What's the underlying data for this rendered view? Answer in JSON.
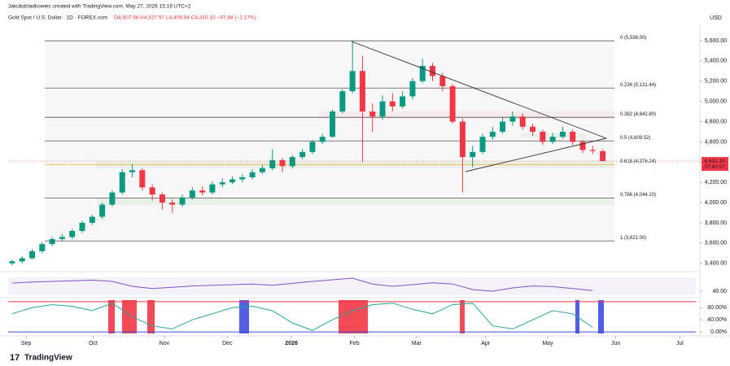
{
  "chart_data": {
    "type": "candlestick",
    "credit": "Jakubdzladkowiec created with TradingView.com, May 27, 2026 15:19 UTC+2",
    "title": "Gold Spot / U.S. Dollar · 1D · FOREX.com",
    "ohlc_text": "O4,507.98 H4,527.97 L4,409.94 C4,410.10 −97.88 (−2.17%)",
    "currency": "USD",
    "price_tag": "4,410.10",
    "countdown": "07:40:57",
    "brand": "TradingView",
    "up_color": "#089981",
    "down_color": "#f23645",
    "xlim": [
      -0.4,
      68.3
    ],
    "xticks": [
      {
        "value": 1.4,
        "label": "Sep"
      },
      {
        "value": 8.1,
        "label": "Oct"
      },
      {
        "value": 15.2,
        "label": "Nov"
      },
      {
        "value": 21.5,
        "label": "Dec"
      },
      {
        "value": 27.9,
        "label": "2026"
      },
      {
        "value": 34.2,
        "label": "Feb"
      },
      {
        "value": 40.4,
        "label": "Mar"
      },
      {
        "value": 47.3,
        "label": "Apr"
      },
      {
        "value": 53.5,
        "label": "May"
      },
      {
        "value": 60.3,
        "label": "Jun"
      },
      {
        "value": 66.7,
        "label": "Jul"
      }
    ],
    "ylim": [
      3350,
      5680
    ],
    "yticks": [
      {
        "value": 3400,
        "label": "3,400.00"
      },
      {
        "value": 3600,
        "label": "3,600.00"
      },
      {
        "value": 3800,
        "label": "3,800.00"
      },
      {
        "value": 4000,
        "label": "4,000.00"
      },
      {
        "value": 4200,
        "label": "4,200.00"
      },
      {
        "value": 4400,
        "label": "4,400.00"
      },
      {
        "value": 4600,
        "label": "4,600.00"
      },
      {
        "value": 4800,
        "label": "4,800.00"
      },
      {
        "value": 5000,
        "label": "5,000.00"
      },
      {
        "value": 5200,
        "label": "5,200.00"
      },
      {
        "value": 5400,
        "label": "5,400.00"
      },
      {
        "value": 5600,
        "label": "5,600.00"
      }
    ],
    "open": [
      3400,
      3420,
      3450,
      3520,
      3590,
      3640,
      3660,
      3720,
      3800,
      3860,
      3980,
      4100,
      4300,
      4320,
      4150,
      4080,
      4000,
      3980,
      4050,
      4120,
      4100,
      4180,
      4200,
      4230,
      4250,
      4300,
      4340,
      4420,
      4360,
      4450,
      4500,
      4600,
      4650,
      4900,
      5100,
      5300,
      4900,
      4850,
      5000,
      4950,
      5050,
      5200,
      5350,
      5250,
      5150,
      4800,
      4450,
      4500,
      4650,
      4700,
      4800,
      4850,
      4750,
      4700,
      4600,
      4650,
      4700,
      4600,
      4520,
      4507.98
    ],
    "high": [
      3440,
      3470,
      3540,
      3610,
      3660,
      3690,
      3740,
      3820,
      3880,
      4000,
      4120,
      4330,
      4380,
      4340,
      4180,
      4100,
      4030,
      4080,
      4150,
      4160,
      4210,
      4240,
      4260,
      4280,
      4330,
      4370,
      4530,
      4440,
      4470,
      4530,
      4620,
      4680,
      4920,
      5120,
      5598,
      5450,
      4980,
      5060,
      5080,
      5100,
      5230,
      5420,
      5380,
      5280,
      5170,
      4830,
      4560,
      4680,
      4750,
      4840,
      4900,
      4880,
      4780,
      4720,
      4690,
      4750,
      4720,
      4620,
      4560,
      4527.97
    ],
    "low": [
      3380,
      3400,
      3440,
      3500,
      3570,
      3620,
      3640,
      3700,
      3780,
      3840,
      3960,
      4080,
      4250,
      4120,
      4020,
      3930,
      3900,
      3960,
      4030,
      4070,
      4080,
      4150,
      4180,
      4200,
      4230,
      4280,
      4320,
      4300,
      4340,
      4430,
      4480,
      4580,
      4640,
      4880,
      5080,
      4400,
      4700,
      4820,
      4900,
      4930,
      5020,
      5180,
      5200,
      5100,
      4780,
      4100,
      4350,
      4480,
      4620,
      4680,
      4760,
      4720,
      4660,
      4570,
      4580,
      4630,
      4570,
      4490,
      4480,
      4409.94
    ],
    "close": [
      3420,
      3450,
      3520,
      3590,
      3640,
      3660,
      3720,
      3800,
      3860,
      3980,
      4100,
      4300,
      4320,
      4150,
      4080,
      4000,
      3980,
      4050,
      4120,
      4100,
      4180,
      4200,
      4230,
      4250,
      4300,
      4340,
      4420,
      4360,
      4450,
      4500,
      4600,
      4650,
      4900,
      5100,
      5300,
      4900,
      4850,
      5000,
      4950,
      5050,
      5200,
      5350,
      5250,
      5150,
      4800,
      4450,
      4500,
      4650,
      4700,
      4800,
      4850,
      4750,
      4700,
      4600,
      4650,
      4700,
      4600,
      4520,
      4510,
      4410.1
    ],
    "fib_levels": [
      {
        "label": "0 (5,598.00)",
        "value": 5598
      },
      {
        "label": "0.236 (5,131.44)",
        "value": 5131.44
      },
      {
        "label": "0.382 (4,842.80)",
        "value": 4842.8
      },
      {
        "label": "0.5 (4,609.52)",
        "value": 4609.52
      },
      {
        "label": "0.618 (4,376.24)",
        "value": 4376.24
      },
      {
        "label": "0.786 (4,044.10)",
        "value": 4044.1
      },
      {
        "label": "1 (3,621.00)",
        "value": 3621
      }
    ],
    "indicator_x": [
      0,
      2,
      4,
      6,
      8,
      10,
      12,
      14,
      16,
      18,
      20,
      22,
      24,
      26,
      28,
      30,
      32,
      34,
      36,
      38,
      40,
      42,
      44,
      46,
      48,
      50,
      52,
      54,
      56,
      58
    ],
    "rsi": {
      "color": "#7e57c2",
      "ylim": [
        25,
        85
      ],
      "yticks": [
        {
          "value": 40,
          "label": "40.00"
        }
      ],
      "values": [
        65,
        68,
        70,
        72,
        74,
        70,
        55,
        48,
        52,
        56,
        58,
        60,
        62,
        58,
        64,
        70,
        75,
        80,
        62,
        55,
        60,
        66,
        62,
        45,
        40,
        50,
        56,
        54,
        48,
        42
      ]
    },
    "stoch": {
      "ylim": [
        -5,
        105
      ],
      "yticks": [
        {
          "value": 80,
          "label": "80.00%"
        },
        {
          "value": 40,
          "label": "40.00%"
        },
        {
          "value": 0,
          "label": "0.00%"
        }
      ],
      "values": [
        60,
        80,
        90,
        85,
        70,
        95,
        50,
        20,
        10,
        40,
        60,
        80,
        85,
        70,
        30,
        5,
        40,
        70,
        90,
        95,
        75,
        60,
        90,
        95,
        20,
        10,
        40,
        70,
        60,
        15
      ]
    }
  }
}
